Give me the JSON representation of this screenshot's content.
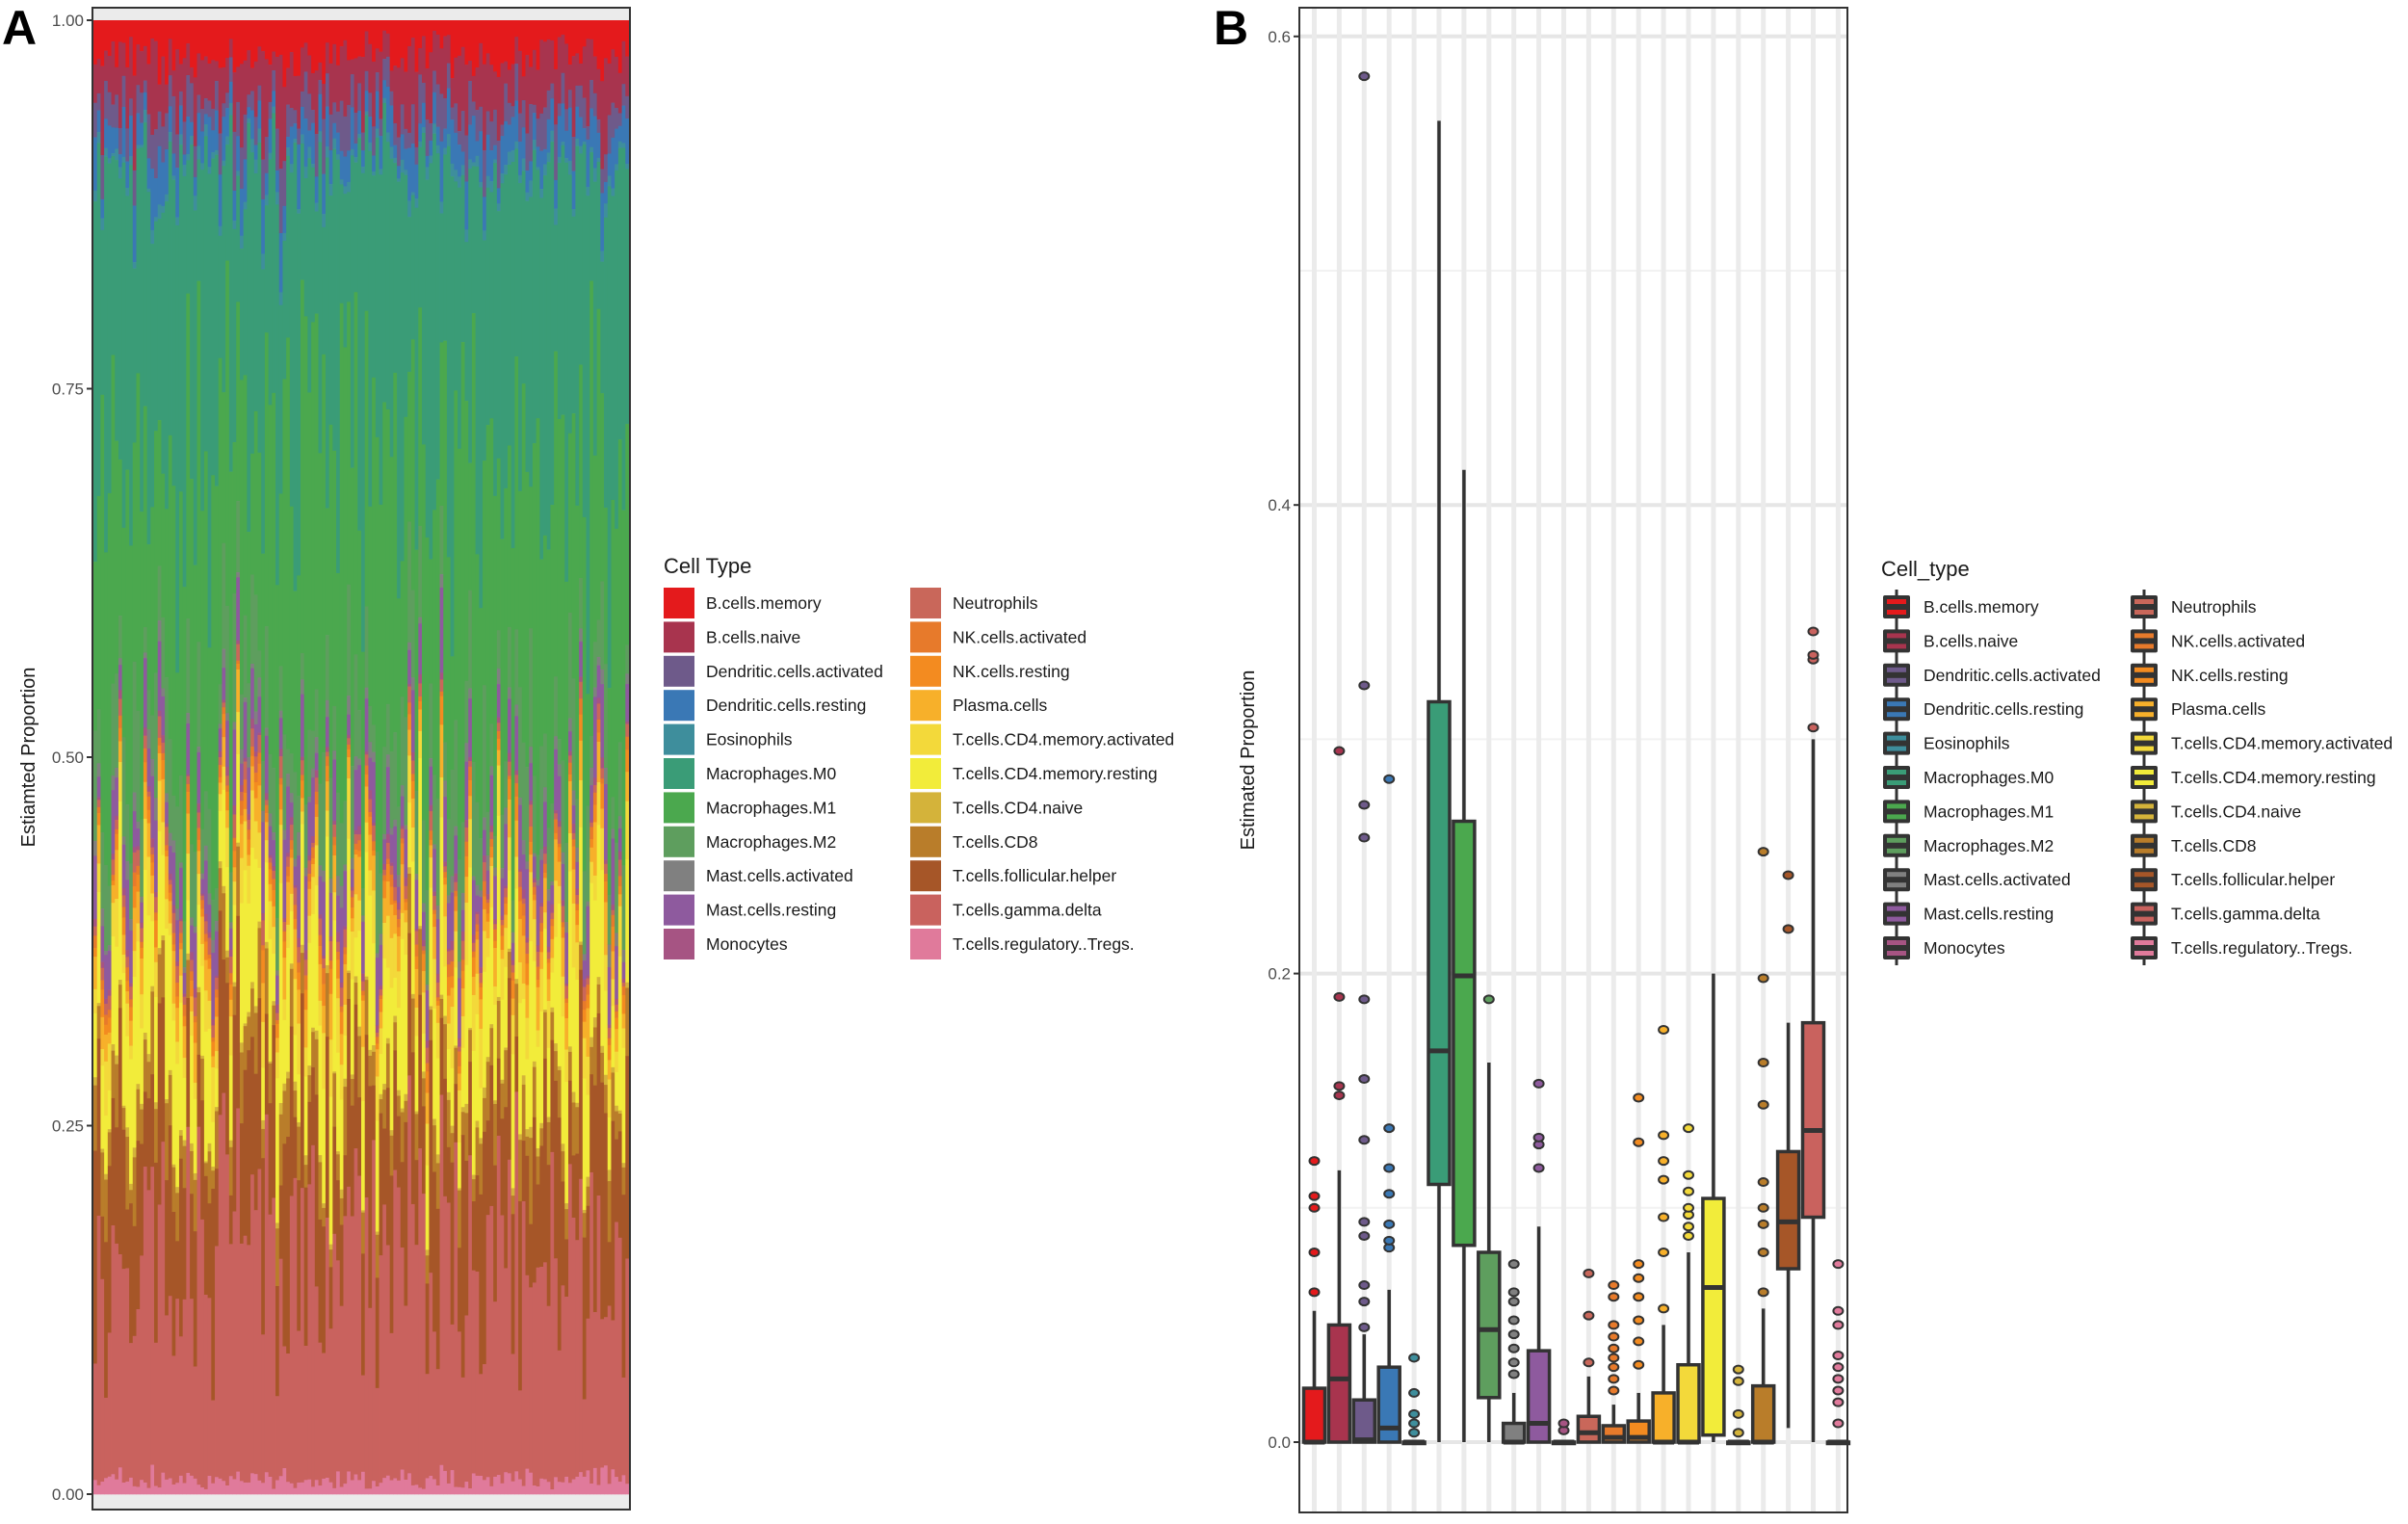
{
  "colors": {
    "B.cells.memory": "#E41A1C",
    "B.cells.naive": "#A8344E",
    "Dendritic.cells.activated": "#6E5A8A",
    "Dendritic.cells.resting": "#3A78B5",
    "Eosinophils": "#3E8E9C",
    "Macrophages.M0": "#3A9C77",
    "Macrophages.M1": "#4BA84E",
    "Macrophages.M2": "#5E9E5E",
    "Mast.cells.activated": "#808080",
    "Mast.cells.resting": "#8E5A9E",
    "Monocytes": "#A65483",
    "Neutrophils": "#C9675A",
    "NK.cells.activated": "#E77A2B",
    "NK.cells.resting": "#F38B20",
    "Plasma.cells": "#F7B02A",
    "T.cells.CD4.memory.activated": "#F3D93A",
    "T.cells.CD4.memory.resting": "#F2EC3A",
    "T.cells.CD4.naive": "#D4B33A",
    "T.cells.CD8": "#B97D2A",
    "T.cells.follicular.helper": "#A65628",
    "T.cells.gamma.delta": "#C9625E",
    "T.cells.regulatory..Tregs.": "#E07A9B"
  },
  "chart_data": [
    {
      "type": "bar",
      "stacked": true,
      "panel_label": "A",
      "xlabel": "",
      "ylabel": "Estiamted Proportion",
      "ylim": [
        0,
        1
      ],
      "yticks": [
        "0.00",
        "0.25",
        "0.50",
        "0.75",
        "1.00"
      ],
      "legend_title": "Cell Type",
      "legend_position": "right",
      "n_samples": 150,
      "categories": [
        "B.cells.memory",
        "B.cells.naive",
        "Dendritic.cells.activated",
        "Dendritic.cells.resting",
        "Eosinophils",
        "Macrophages.M0",
        "Macrophages.M1",
        "Macrophages.M2",
        "Mast.cells.activated",
        "Mast.cells.resting",
        "Monocytes",
        "Neutrophils",
        "NK.cells.activated",
        "NK.cells.resting",
        "Plasma.cells",
        "T.cells.CD4.memory.activated",
        "T.cells.CD4.memory.resting",
        "T.cells.CD4.naive",
        "T.cells.CD8",
        "T.cells.follicular.helper",
        "T.cells.gamma.delta",
        "T.cells.regulatory..Tregs."
      ],
      "mean_proportions": [
        0.025,
        0.035,
        0.02,
        0.022,
        0.006,
        0.2,
        0.2,
        0.05,
        0.008,
        0.03,
        0.004,
        0.008,
        0.006,
        0.01,
        0.02,
        0.025,
        0.07,
        0.004,
        0.03,
        0.1,
        0.16,
        0.01
      ]
    },
    {
      "type": "box",
      "panel_label": "B",
      "xlabel": "",
      "ylabel": "Estimated Proportion",
      "ylim": [
        -0.01,
        0.62
      ],
      "yticks": [
        "0.0",
        "0.2",
        "0.4",
        "0.6"
      ],
      "legend_title": "Cell_type",
      "legend_position": "right",
      "boxes": [
        {
          "name": "B.cells.memory",
          "q1": 0,
          "median": 0,
          "q3": 0.023,
          "wlo": 0,
          "whi": 0.056,
          "outliers": [
            0.064,
            0.081,
            0.1,
            0.105,
            0.12
          ]
        },
        {
          "name": "B.cells.naive",
          "q1": 0,
          "median": 0.027,
          "q3": 0.05,
          "wlo": 0,
          "whi": 0.116,
          "outliers": [
            0.148,
            0.152,
            0.19,
            0.295
          ]
        },
        {
          "name": "Dendritic.cells.activated",
          "q1": 0,
          "median": 0.001,
          "q3": 0.018,
          "wlo": 0,
          "whi": 0.046,
          "outliers": [
            0.049,
            0.06,
            0.067,
            0.088,
            0.094,
            0.129,
            0.155,
            0.189,
            0.258,
            0.272,
            0.323,
            0.583
          ]
        },
        {
          "name": "Dendritic.cells.resting",
          "q1": 0,
          "median": 0.006,
          "q3": 0.032,
          "wlo": 0,
          "whi": 0.065,
          "outliers": [
            0.083,
            0.086,
            0.093,
            0.106,
            0.117,
            0.134,
            0.283
          ]
        },
        {
          "name": "Eosinophils",
          "q1": 0,
          "median": 0,
          "q3": 0,
          "wlo": 0,
          "whi": 0,
          "outliers": [
            0.004,
            0.008,
            0.012,
            0.021,
            0.036
          ]
        },
        {
          "name": "Macrophages.M0",
          "q1": 0.11,
          "median": 0.167,
          "q3": 0.316,
          "wlo": 0,
          "whi": 0.564
        },
        {
          "name": "Macrophages.M1",
          "q1": 0.084,
          "median": 0.199,
          "q3": 0.265,
          "wlo": 0,
          "whi": 0.415
        },
        {
          "name": "Macrophages.M2",
          "q1": 0.019,
          "median": 0.048,
          "q3": 0.081,
          "wlo": 0,
          "whi": 0.162,
          "outliers": [
            0.189
          ]
        },
        {
          "name": "Mast.cells.activated",
          "q1": 0,
          "median": 0,
          "q3": 0.008,
          "wlo": 0,
          "whi": 0.021,
          "outliers": [
            0.029,
            0.034,
            0.04,
            0.046,
            0.052,
            0.06,
            0.064,
            0.076
          ]
        },
        {
          "name": "Mast.cells.resting",
          "q1": 0,
          "median": 0.008,
          "q3": 0.039,
          "wlo": 0,
          "whi": 0.092,
          "outliers": [
            0.117,
            0.127,
            0.13,
            0.153
          ]
        },
        {
          "name": "Monocytes",
          "q1": 0,
          "median": 0,
          "q3": 0,
          "wlo": 0,
          "whi": 0,
          "outliers": [
            0.005,
            0.008
          ]
        },
        {
          "name": "Neutrophils",
          "q1": 0,
          "median": 0.004,
          "q3": 0.011,
          "wlo": 0,
          "whi": 0.028,
          "outliers": [
            0.034,
            0.054,
            0.072
          ]
        },
        {
          "name": "NK.cells.activated",
          "q1": 0,
          "median": 0.002,
          "q3": 0.007,
          "wlo": 0,
          "whi": 0.016,
          "outliers": [
            0.022,
            0.027,
            0.032,
            0.036,
            0.04,
            0.045,
            0.05,
            0.062,
            0.067
          ]
        },
        {
          "name": "NK.cells.resting",
          "q1": 0,
          "median": 0.002,
          "q3": 0.009,
          "wlo": 0,
          "whi": 0.021,
          "outliers": [
            0.033,
            0.043,
            0.052,
            0.062,
            0.07,
            0.076,
            0.128,
            0.147
          ]
        },
        {
          "name": "Plasma.cells",
          "q1": 0,
          "median": 0,
          "q3": 0.021,
          "wlo": 0,
          "whi": 0.05,
          "outliers": [
            0.057,
            0.081,
            0.096,
            0.112,
            0.12,
            0.131,
            0.176
          ]
        },
        {
          "name": "T.cells.CD4.memory.activated",
          "q1": 0,
          "median": 0,
          "q3": 0.033,
          "wlo": 0,
          "whi": 0.081,
          "outliers": [
            0.088,
            0.092,
            0.097,
            0.1,
            0.107,
            0.114,
            0.134
          ]
        },
        {
          "name": "T.cells.CD4.memory.resting",
          "q1": 0.003,
          "median": 0.066,
          "q3": 0.104,
          "wlo": 0,
          "whi": 0.2
        },
        {
          "name": "T.cells.CD4.naive",
          "q1": 0,
          "median": 0,
          "q3": 0,
          "wlo": 0,
          "whi": 0,
          "outliers": [
            0.004,
            0.012,
            0.026,
            0.031
          ]
        },
        {
          "name": "T.cells.CD8",
          "q1": 0,
          "median": 0,
          "q3": 0.024,
          "wlo": 0,
          "whi": 0.057,
          "outliers": [
            0.064,
            0.081,
            0.093,
            0.1,
            0.111,
            0.144,
            0.162,
            0.198,
            0.252
          ]
        },
        {
          "name": "T.cells.follicular.helper",
          "q1": 0.074,
          "median": 0.094,
          "q3": 0.124,
          "wlo": 0.006,
          "whi": 0.179,
          "outliers": [
            0.219,
            0.242
          ]
        },
        {
          "name": "T.cells.gamma.delta",
          "q1": 0.096,
          "median": 0.133,
          "q3": 0.179,
          "wlo": 0,
          "whi": 0.3,
          "outliers": [
            0.305,
            0.334,
            0.336,
            0.346
          ]
        },
        {
          "name": "T.cells.regulatory..Tregs.",
          "q1": 0,
          "median": 0,
          "q3": 0,
          "wlo": 0,
          "whi": 0,
          "outliers": [
            0.008,
            0.017,
            0.022,
            0.027,
            0.032,
            0.037,
            0.05,
            0.056,
            0.076
          ]
        }
      ]
    }
  ]
}
